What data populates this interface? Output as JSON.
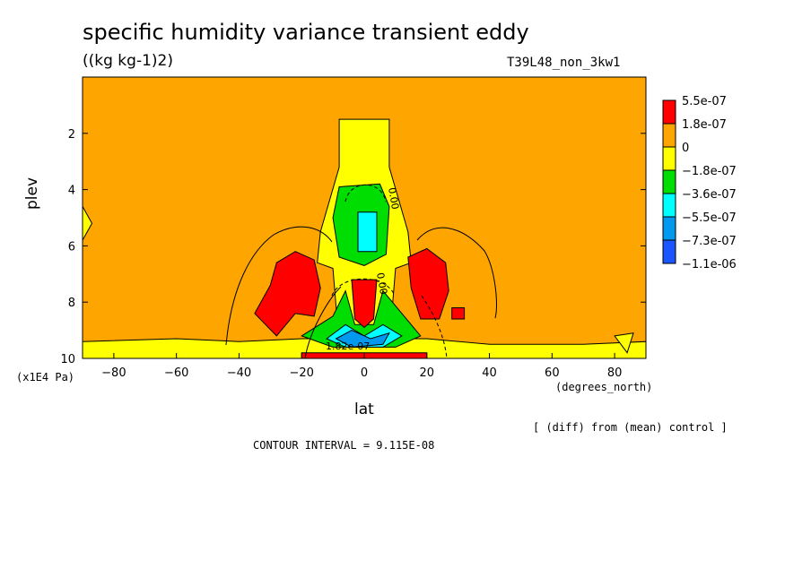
{
  "chart_data": {
    "type": "heatmap",
    "title": "specific humidity variance transient eddy",
    "units": "((kg kg-1)2)",
    "run_label": "T39L48_non_3kw1",
    "xlabel": "lat",
    "xunits": "(degrees_north)",
    "ylabel": "plev",
    "yunits": "(x1E4 Pa)",
    "xlim": [
      -90,
      90
    ],
    "ylim": [
      10,
      0
    ],
    "xticks": [
      -80,
      -60,
      -40,
      -20,
      0,
      20,
      40,
      60,
      80
    ],
    "yticks": [
      2,
      4,
      6,
      8,
      10
    ],
    "comparison_note": "[ (diff) from (mean) control ]",
    "contour_interval_text": "CONTOUR INTERVAL = 9.115E-08",
    "contour_labels": [
      "0.00",
      "0.00",
      "1.82e-07"
    ],
    "colorbar": {
      "levels": [
        "5.5e-07",
        "1.8e-07",
        "0",
        "−1.8e-07",
        "−3.6e-07",
        "−5.5e-07",
        "−7.3e-07",
        "−1.1e-06"
      ],
      "colors": [
        "#ff0000",
        "#ffa500",
        "#ffff00",
        "#00dd00",
        "#00ffff",
        "#0099ee",
        "#1a55ff"
      ]
    },
    "background_color": "#ffa500",
    "regions": [
      {
        "color": "#ffff00",
        "polygon": [
          [
            -8,
            1.5
          ],
          [
            8,
            1.5
          ],
          [
            8,
            3.2
          ],
          [
            14,
            5.5
          ],
          [
            15,
            6.6
          ],
          [
            10,
            6.8
          ],
          [
            8,
            9.5
          ],
          [
            -8,
            9.5
          ],
          [
            -10,
            6.8
          ],
          [
            -15,
            6.6
          ],
          [
            -14,
            5.5
          ],
          [
            -8,
            3.2
          ]
        ]
      },
      {
        "color": "#ffff00",
        "polygon": [
          [
            -90,
            9.4
          ],
          [
            -60,
            9.3
          ],
          [
            -40,
            9.4
          ],
          [
            -20,
            9.3
          ],
          [
            20,
            9.3
          ],
          [
            40,
            9.5
          ],
          [
            70,
            9.5
          ],
          [
            90,
            9.4
          ],
          [
            90,
            10
          ],
          [
            -90,
            10
          ]
        ]
      },
      {
        "color": "#ffff00",
        "polygon": [
          [
            -90,
            4.6
          ],
          [
            -87,
            5.2
          ],
          [
            -90,
            5.8
          ]
        ]
      },
      {
        "color": "#ffff00",
        "polygon": [
          [
            80,
            9.2
          ],
          [
            86,
            9.1
          ],
          [
            84,
            9.8
          ]
        ]
      },
      {
        "color": "#00dd00",
        "polygon": [
          [
            -8,
            3.9
          ],
          [
            5,
            3.8
          ],
          [
            8,
            4.6
          ],
          [
            7,
            6.3
          ],
          [
            0,
            6.7
          ],
          [
            -8,
            6.4
          ],
          [
            -10,
            5
          ]
        ]
      },
      {
        "color": "#00ffff",
        "polygon": [
          [
            -2,
            4.8
          ],
          [
            4,
            4.8
          ],
          [
            4,
            6.2
          ],
          [
            -2,
            6.2
          ]
        ]
      },
      {
        "color": "#00dd00",
        "polygon": [
          [
            -20,
            9.2
          ],
          [
            -10,
            8.5
          ],
          [
            -6,
            7.6
          ],
          [
            -3,
            8.8
          ],
          [
            3,
            8.8
          ],
          [
            6,
            7.6
          ],
          [
            12,
            8.4
          ],
          [
            18,
            9.2
          ],
          [
            10,
            9.6
          ],
          [
            -10,
            9.6
          ]
        ]
      },
      {
        "color": "#00ffff",
        "polygon": [
          [
            -12,
            9.3
          ],
          [
            -6,
            8.8
          ],
          [
            0,
            9.2
          ],
          [
            6,
            8.8
          ],
          [
            12,
            9.2
          ],
          [
            6,
            9.6
          ],
          [
            -6,
            9.6
          ]
        ]
      },
      {
        "color": "#0099ee",
        "polygon": [
          [
            -9,
            9.3
          ],
          [
            -4,
            9.0
          ],
          [
            2,
            9.3
          ],
          [
            8,
            9.1
          ],
          [
            6,
            9.5
          ],
          [
            -4,
            9.6
          ]
        ]
      },
      {
        "color": "#ff0000",
        "polygon": [
          [
            -35,
            8.4
          ],
          [
            -30,
            7.4
          ],
          [
            -28,
            6.6
          ],
          [
            -22,
            6.2
          ],
          [
            -16,
            6.5
          ],
          [
            -14,
            7.5
          ],
          [
            -16,
            8.5
          ],
          [
            -22,
            8.4
          ],
          [
            -28,
            9.2
          ]
        ]
      },
      {
        "color": "#ff0000",
        "polygon": [
          [
            -4,
            7.2
          ],
          [
            4,
            7.2
          ],
          [
            3,
            8.6
          ],
          [
            0,
            8.9
          ],
          [
            -3,
            8.6
          ]
        ]
      },
      {
        "color": "#ff0000",
        "polygon": [
          [
            14,
            6.4
          ],
          [
            20,
            6.1
          ],
          [
            26,
            6.6
          ],
          [
            27,
            7.6
          ],
          [
            24,
            8.6
          ],
          [
            18,
            8.6
          ],
          [
            15,
            7.5
          ]
        ]
      },
      {
        "color": "#ff0000",
        "polygon": [
          [
            28,
            8.2
          ],
          [
            32,
            8.2
          ],
          [
            32,
            8.6
          ],
          [
            28,
            8.6
          ]
        ]
      },
      {
        "color": "#ff0000",
        "polygon": [
          [
            -20,
            9.8
          ],
          [
            20,
            9.8
          ],
          [
            20,
            10
          ],
          [
            -20,
            10
          ]
        ]
      }
    ]
  }
}
